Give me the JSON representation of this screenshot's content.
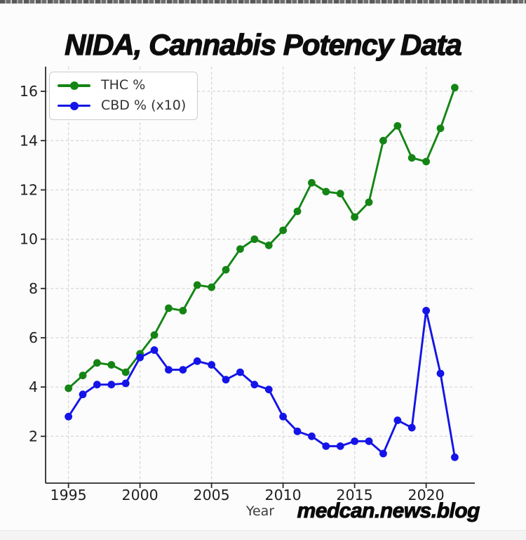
{
  "page": {
    "title": "NIDA, Cannabis Potency Data",
    "watermark": "medcan.news.blog"
  },
  "chart_data": {
    "type": "line",
    "title": "NIDA, Cannabis Potency Data",
    "xlabel": "Year",
    "ylabel": "",
    "x": [
      1995,
      1996,
      1997,
      1998,
      1999,
      2000,
      2001,
      2002,
      2003,
      2004,
      2005,
      2006,
      2007,
      2008,
      2009,
      2010,
      2011,
      2012,
      2013,
      2014,
      2015,
      2016,
      2017,
      2018,
      2019,
      2020,
      2021,
      2022
    ],
    "series": [
      {
        "name": "THC %",
        "color": "#148514",
        "values": [
          3.95,
          4.47,
          4.98,
          4.9,
          4.6,
          5.35,
          6.11,
          7.2,
          7.1,
          8.14,
          8.05,
          8.76,
          9.6,
          10.0,
          9.75,
          10.36,
          11.13,
          12.29,
          11.93,
          11.85,
          10.9,
          11.5,
          14.0,
          14.6,
          13.3,
          13.15,
          14.5,
          16.15
        ]
      },
      {
        "name": "CBD % (x10)",
        "color": "#1414e8",
        "values": [
          2.8,
          3.7,
          4.1,
          4.1,
          4.15,
          5.2,
          5.5,
          4.7,
          4.7,
          5.05,
          4.9,
          4.3,
          4.6,
          4.1,
          3.9,
          2.8,
          2.2,
          2.0,
          1.6,
          1.6,
          1.8,
          1.8,
          1.3,
          2.65,
          2.35,
          7.1,
          4.55,
          1.15
        ]
      }
    ],
    "xticks": [
      1995,
      2000,
      2005,
      2010,
      2015,
      2020
    ],
    "yticks": [
      2,
      4,
      6,
      8,
      10,
      12,
      14,
      16
    ],
    "xlim": [
      1993.4,
      2023.4
    ],
    "ylim": [
      0.1,
      17.0
    ],
    "grid": true,
    "grid_style": "dashed",
    "legend_position": "upper-left",
    "marker": "circle",
    "colors": {
      "grid": "#d9d9d9",
      "spine": "#2a2a2a",
      "tick_label": "#1f1f1f"
    }
  }
}
